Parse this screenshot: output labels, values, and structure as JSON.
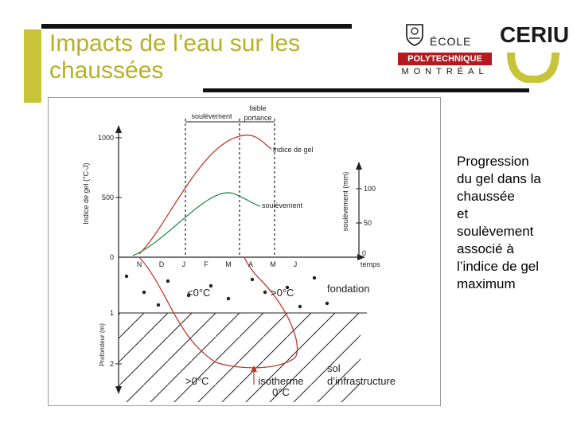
{
  "slide": {
    "title_line1": "Impacts de l’eau sur les",
    "title_line2": "chaussées",
    "side_line1": "Progression",
    "side_line2": "du gel dans la",
    "side_line3": "chaussée",
    "side_line4": "et",
    "side_line5": "soulèvement",
    "side_line6": "associé à",
    "side_line7": "l’indice de gel",
    "side_line8": "maximum"
  },
  "logos": {
    "poly_ecole": "ÉCOLE",
    "poly_band": "POLYTECHNIQUE",
    "poly_city": "MONTRÉAL",
    "ceriu": "CERIU",
    "ceriu_color": "#c8c43a"
  },
  "figure": {
    "label_soulevement": "soulèvement",
    "label_faible1": "faible",
    "label_faible2": "portance",
    "label_indice_de_gel": "indice de gel",
    "label_soulevement_curve": "soulèvement",
    "y_left_title": "Indice de gel (°C-J)",
    "y_left_1000": "1000",
    "y_left_500": "500",
    "y_left_0": "0",
    "y_right_title": "soulèvement (mm)",
    "y_right_100": "100",
    "y_right_50": "50",
    "y_right_0": "0",
    "temps": "temps",
    "months": [
      "N",
      "D",
      "J",
      "F",
      "M",
      "A",
      "M",
      "J"
    ],
    "label_below0": "<0°C",
    "label_above0_1": ">0°C",
    "label_fondation": "fondation",
    "depth_title": "Profondeur (m)",
    "depth_1": "1",
    "depth_2": "2",
    "label_above0_2": ">0°C",
    "label_isotherme1": "isotherme",
    "label_isotherme2": "0°C",
    "label_sol1": "sol",
    "label_sol2": "d’infrastructure",
    "red_color": "#c0392b",
    "green_color": "#2e8b57"
  }
}
